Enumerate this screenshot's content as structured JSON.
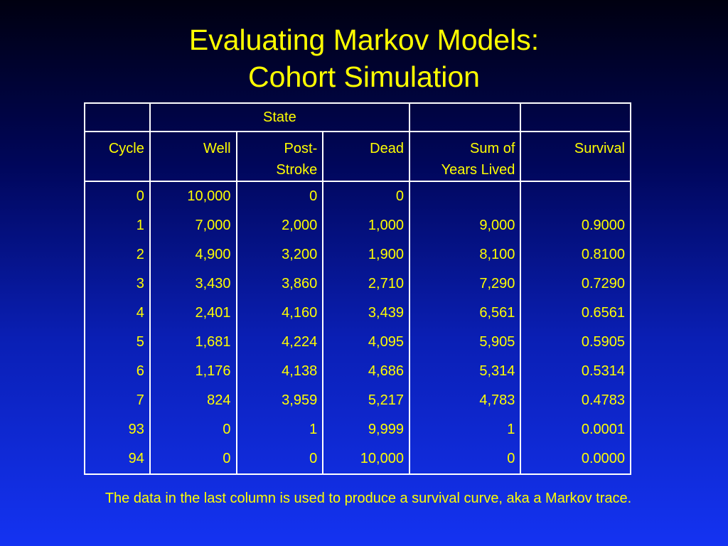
{
  "title": {
    "line1": "Evaluating Markov Models:",
    "line2": "Cohort Simulation"
  },
  "table": {
    "group_header": "State",
    "headers": {
      "cycle": "Cycle",
      "well": "Well",
      "post_stroke_1": "Post-",
      "post_stroke_2": "Stroke",
      "dead": "Dead",
      "sum_1": "Sum of",
      "sum_2": "Years Lived",
      "survival": "Survival"
    },
    "rows": [
      [
        "0",
        "10,000",
        "0",
        "0",
        "",
        ""
      ],
      [
        "1",
        "7,000",
        "2,000",
        "1,000",
        "9,000",
        "0.9000"
      ],
      [
        "2",
        "4,900",
        "3,200",
        "1,900",
        "8,100",
        "0.8100"
      ],
      [
        "3",
        "3,430",
        "3,860",
        "2,710",
        "7,290",
        "0.7290"
      ],
      [
        "4",
        "2,401",
        "4,160",
        "3,439",
        "6,561",
        "0.6561"
      ],
      [
        "5",
        "1,681",
        "4,224",
        "4,095",
        "5,905",
        "0.5905"
      ],
      [
        "6",
        "1,176",
        "4,138",
        "4,686",
        "5,314",
        "0.5314"
      ],
      [
        "7",
        "824",
        "3,959",
        "5,217",
        "4,783",
        "0.4783"
      ],
      [
        "93",
        "0",
        "1",
        "9,999",
        "1",
        "0.0001"
      ],
      [
        "94",
        "0",
        "0",
        "10,000",
        "0",
        "0.0000"
      ]
    ]
  },
  "footnote": "The data in the last column is used to produce a survival curve, aka a Markov trace."
}
